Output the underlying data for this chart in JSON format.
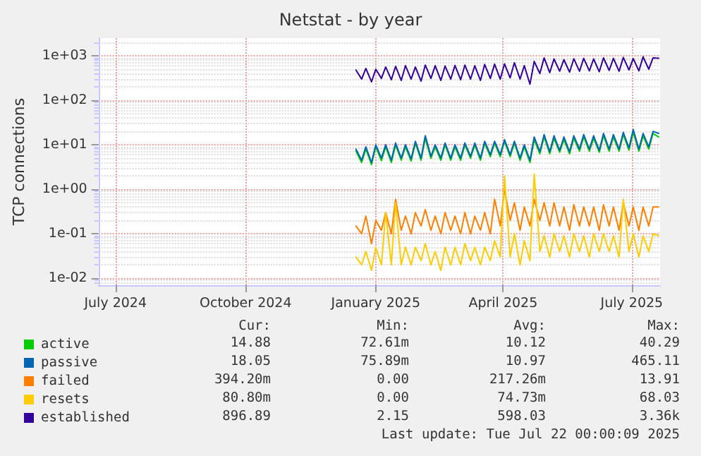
{
  "chart_data": {
    "type": "line",
    "title": "Netstat - by year",
    "ylabel": "TCP connections",
    "x": [
      "2024-12-18",
      "2024-12-22",
      "2024-12-25",
      "2024-12-29",
      "2025-01-01",
      "2025-01-05",
      "2025-01-08",
      "2025-01-12",
      "2025-01-15",
      "2025-01-19",
      "2025-01-22",
      "2025-01-26",
      "2025-01-29",
      "2025-02-02",
      "2025-02-05",
      "2025-02-09",
      "2025-02-12",
      "2025-02-16",
      "2025-02-19",
      "2025-02-23",
      "2025-02-26",
      "2025-03-02",
      "2025-03-05",
      "2025-03-09",
      "2025-03-12",
      "2025-03-16",
      "2025-03-19",
      "2025-03-23",
      "2025-03-26",
      "2025-03-30",
      "2025-04-02",
      "2025-04-06",
      "2025-04-09",
      "2025-04-13",
      "2025-04-16",
      "2025-04-20",
      "2025-04-23",
      "2025-04-27",
      "2025-04-30",
      "2025-05-04",
      "2025-05-07",
      "2025-05-11",
      "2025-05-14",
      "2025-05-18",
      "2025-05-21",
      "2025-05-25",
      "2025-05-28",
      "2025-06-01",
      "2025-06-04",
      "2025-06-08",
      "2025-06-11",
      "2025-06-15",
      "2025-06-18",
      "2025-06-22",
      "2025-06-25",
      "2025-06-29",
      "2025-07-02",
      "2025-07-06",
      "2025-07-09",
      "2025-07-13",
      "2025-07-16",
      "2025-07-20"
    ],
    "series": [
      {
        "name": "active",
        "color": "#00cc00",
        "values": [
          7.2,
          4,
          8,
          3.6,
          9,
          4.4,
          9,
          4,
          10,
          4.5,
          9,
          4.3,
          11,
          4.5,
          14,
          5,
          9,
          4.5,
          10,
          4.5,
          9,
          4.5,
          10,
          5,
          10,
          4.5,
          11,
          5.4,
          11,
          5.4,
          12,
          5.4,
          11,
          4.5,
          9,
          4,
          13,
          6.3,
          15,
          6.3,
          14,
          6.8,
          13,
          6.3,
          14,
          7.2,
          15,
          7.2,
          14,
          6.8,
          16,
          7.2,
          15,
          7.2,
          17,
          7.6,
          19,
          7.2,
          16,
          8,
          18,
          15
        ]
      },
      {
        "name": "passive",
        "color": "#0066b3",
        "values": [
          8,
          4.5,
          9,
          4,
          10,
          5,
          10,
          4.5,
          11,
          5,
          10,
          4.8,
          12,
          5,
          16,
          5.5,
          10,
          5,
          11,
          5,
          10,
          5,
          11,
          5.5,
          11,
          5,
          12,
          6,
          12,
          6,
          13,
          6,
          12,
          5,
          10,
          4.5,
          15,
          7,
          17,
          7,
          16,
          7.5,
          15,
          7,
          16,
          8,
          17,
          8,
          16,
          7.5,
          18,
          8,
          17,
          8,
          19,
          8.5,
          22,
          8,
          18,
          9,
          20,
          18
        ]
      },
      {
        "name": "failed",
        "color": "#ff8000",
        "values": [
          0.15,
          0.1,
          0.25,
          0.06,
          0.2,
          0.12,
          0.3,
          0.1,
          0.6,
          0.12,
          0.25,
          0.1,
          0.3,
          0.15,
          0.35,
          0.12,
          0.25,
          0.1,
          0.3,
          0.12,
          0.25,
          0.1,
          0.3,
          0.1,
          0.25,
          0.12,
          0.3,
          0.1,
          0.6,
          0.15,
          1.0,
          0.2,
          0.5,
          0.12,
          0.4,
          0.15,
          0.6,
          0.2,
          0.5,
          0.15,
          0.5,
          0.15,
          0.4,
          0.12,
          0.45,
          0.15,
          0.4,
          0.15,
          0.4,
          0.12,
          0.45,
          0.15,
          0.4,
          0.12,
          0.5,
          0.15,
          0.4,
          0.12,
          0.4,
          0.15,
          0.4,
          0.4
        ]
      },
      {
        "name": "resets",
        "color": "#ffcc00",
        "values": [
          0.03,
          0.02,
          0.04,
          0.015,
          0.05,
          0.02,
          0.3,
          0.02,
          0.5,
          0.02,
          0.05,
          0.02,
          0.05,
          0.025,
          0.06,
          0.02,
          0.04,
          0.015,
          0.05,
          0.02,
          0.05,
          0.02,
          0.06,
          0.025,
          0.05,
          0.02,
          0.05,
          0.025,
          0.07,
          0.03,
          2.0,
          0.03,
          0.1,
          0.02,
          0.07,
          0.025,
          2.2,
          0.04,
          0.09,
          0.03,
          0.1,
          0.04,
          0.09,
          0.03,
          0.1,
          0.04,
          0.09,
          0.03,
          0.1,
          0.04,
          0.1,
          0.04,
          0.09,
          0.03,
          0.6,
          0.04,
          0.1,
          0.03,
          0.09,
          0.04,
          0.1,
          0.09
        ]
      },
      {
        "name": "established",
        "color": "#330099",
        "values": [
          480,
          300,
          520,
          260,
          500,
          310,
          560,
          290,
          580,
          280,
          600,
          300,
          560,
          270,
          620,
          310,
          600,
          280,
          590,
          300,
          610,
          290,
          620,
          300,
          600,
          280,
          640,
          310,
          650,
          300,
          660,
          320,
          700,
          300,
          600,
          230,
          750,
          400,
          900,
          420,
          850,
          450,
          820,
          430,
          860,
          450,
          880,
          460,
          850,
          440,
          900,
          470,
          880,
          450,
          920,
          480,
          870,
          460,
          950,
          500,
          900,
          880
        ]
      }
    ],
    "xlim": [
      "2024-06-19",
      "2025-07-21"
    ],
    "xticks": [
      {
        "value": "2024-07-01",
        "label": "July 2024"
      },
      {
        "value": "2024-10-01",
        "label": "October 2024"
      },
      {
        "value": "2025-01-01",
        "label": "January 2025"
      },
      {
        "value": "2025-04-01",
        "label": "April 2025"
      },
      {
        "value": "2025-07-01",
        "label": "July 2025"
      }
    ],
    "ylim": [
      0.007,
      2500
    ],
    "yticks": [
      {
        "value": 0.01,
        "label": "1e-02"
      },
      {
        "value": 0.1,
        "label": "1e-01"
      },
      {
        "value": 1,
        "label": "1e+00"
      },
      {
        "value": 10,
        "label": "1e+01"
      },
      {
        "value": 100,
        "label": "1e+02"
      },
      {
        "value": 1000,
        "label": "1e+03"
      }
    ],
    "log": "y",
    "grid": true,
    "legend": "bottom",
    "marker": "none",
    "line_style": "solid",
    "annotations": [
      "Cur:",
      "Min:",
      "Avg:",
      "Max:",
      "14.88",
      "72.61m",
      "10.12",
      "40.29",
      "18.05",
      "75.89m",
      "10.97",
      "465.11",
      "394.20m",
      "0.00",
      "217.26m",
      "13.91",
      "80.80m",
      "0.00",
      "74.73m",
      "68.03",
      "896.89",
      "2.15",
      "598.03",
      "3.36k",
      "Last update: Tue Jul 22 00:00:09 2025"
    ]
  }
}
